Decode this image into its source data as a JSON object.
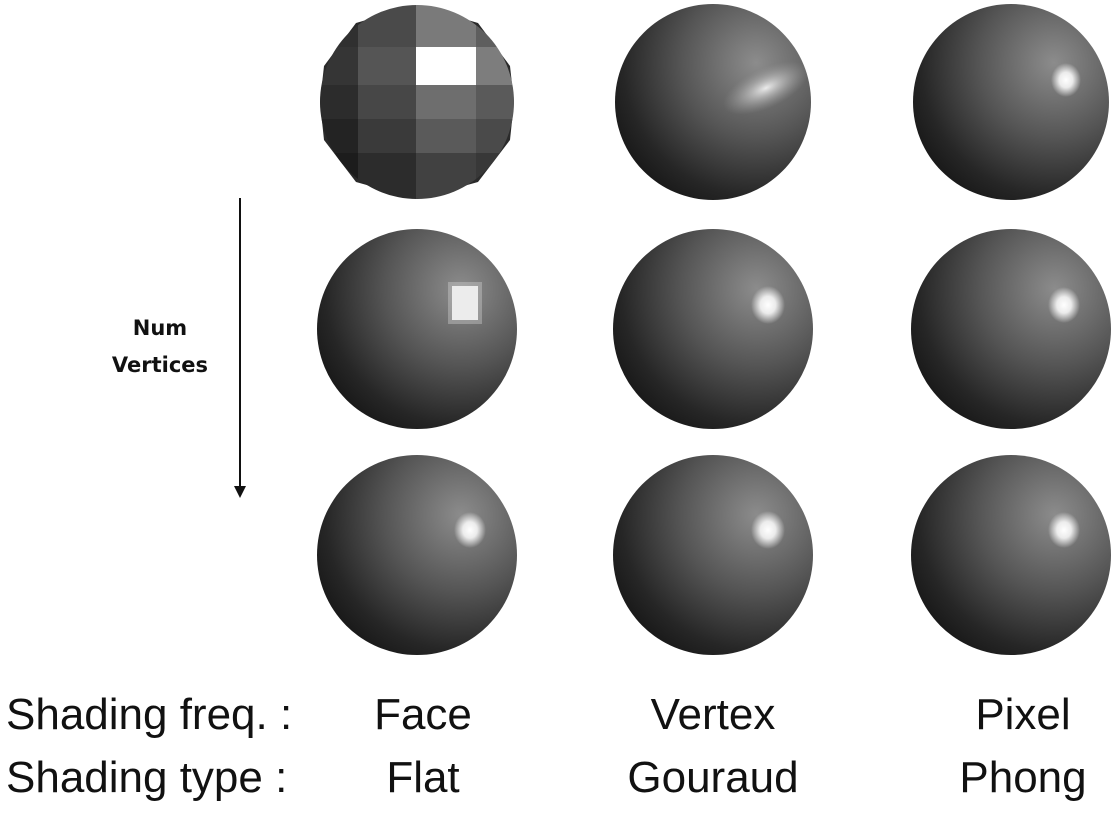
{
  "axis": {
    "label_line1": "Num",
    "label_line2": "Vertices"
  },
  "rows": {
    "freq_label": "Shading freq. :",
    "type_label": "Shading type :"
  },
  "columns": [
    {
      "freq": "Face",
      "type": "Flat"
    },
    {
      "freq": "Vertex",
      "type": "Gouraud"
    },
    {
      "freq": "Pixel",
      "type": "Phong"
    }
  ],
  "colors": {
    "sphere_dark": "#141414",
    "sphere_light": "#8c8c8c",
    "highlight": "#ffffff",
    "background": "#ffffff"
  }
}
